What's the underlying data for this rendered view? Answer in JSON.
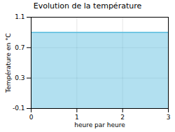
{
  "chart_data": {
    "type": "area",
    "title": "Evolution de la température",
    "xlabel": "heure par heure",
    "ylabel": "Température en °C",
    "x": [
      0,
      3
    ],
    "values": [
      0.9,
      0.9
    ],
    "color": "#55bbdd",
    "xlim": [
      0,
      3
    ],
    "ylim": [
      -0.1,
      1.1
    ],
    "xticks": [
      0,
      1,
      2,
      3
    ],
    "yticks": [
      -0.1,
      0.3,
      0.7,
      1.1
    ],
    "grid": true
  }
}
